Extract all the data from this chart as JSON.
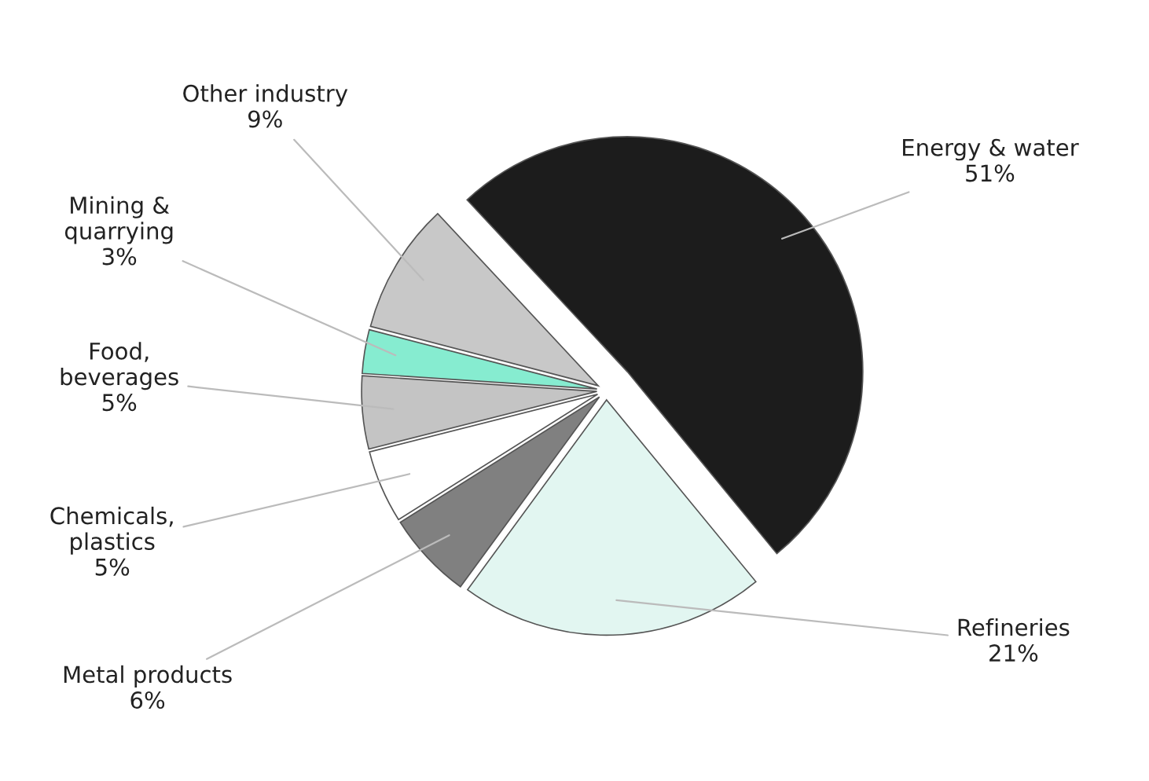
{
  "chart_data": {
    "type": "pie",
    "categories": [
      "Energy & water",
      "Refineries",
      "Metal products",
      "Chemicals, plastics",
      "Food, beverages",
      "Mining & quarrying",
      "Other industry"
    ],
    "values": [
      51,
      21,
      6,
      5,
      5,
      3,
      9
    ],
    "colors": [
      "#1c1c1c",
      "#e2f6f1",
      "#808080",
      "#ffffff",
      "#c4c4c4",
      "#86ecd0",
      "#c8c8c8"
    ],
    "value_labels": [
      "51%",
      "21%",
      "6%",
      "5%",
      "5%",
      "3%",
      "9%"
    ],
    "legend": false
  }
}
